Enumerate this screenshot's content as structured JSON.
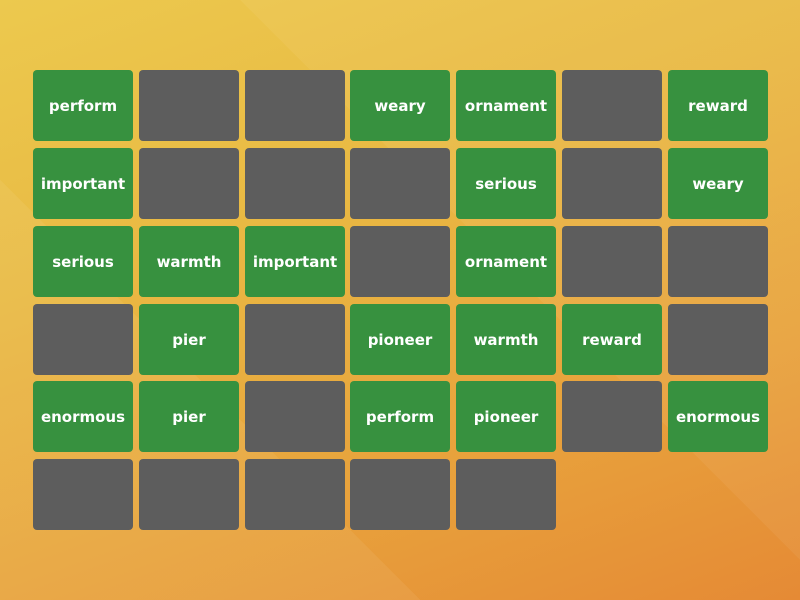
{
  "colors": {
    "face": "#37913f",
    "back": "#5d5d5d",
    "background_top": "#ecc94e",
    "background_bottom": "#e58a35"
  },
  "grid": {
    "columns": 7
  },
  "cards": [
    {
      "state": "face",
      "word": "perform"
    },
    {
      "state": "back"
    },
    {
      "state": "back"
    },
    {
      "state": "face",
      "word": "weary"
    },
    {
      "state": "face",
      "word": "ornament"
    },
    {
      "state": "back"
    },
    {
      "state": "face",
      "word": "reward"
    },
    {
      "state": "face",
      "word": "important"
    },
    {
      "state": "back"
    },
    {
      "state": "back"
    },
    {
      "state": "back"
    },
    {
      "state": "face",
      "word": "serious"
    },
    {
      "state": "back"
    },
    {
      "state": "face",
      "word": "weary"
    },
    {
      "state": "face",
      "word": "serious"
    },
    {
      "state": "face",
      "word": "warmth"
    },
    {
      "state": "face",
      "word": "important"
    },
    {
      "state": "back"
    },
    {
      "state": "face",
      "word": "ornament"
    },
    {
      "state": "back"
    },
    {
      "state": "back"
    },
    {
      "state": "back"
    },
    {
      "state": "face",
      "word": "pier"
    },
    {
      "state": "back"
    },
    {
      "state": "face",
      "word": "pioneer"
    },
    {
      "state": "face",
      "word": "warmth"
    },
    {
      "state": "face",
      "word": "reward"
    },
    {
      "state": "back"
    },
    {
      "state": "face",
      "word": "enormous"
    },
    {
      "state": "face",
      "word": "pier"
    },
    {
      "state": "back"
    },
    {
      "state": "face",
      "word": "perform"
    },
    {
      "state": "face",
      "word": "pioneer"
    },
    {
      "state": "back"
    },
    {
      "state": "face",
      "word": "enormous"
    },
    {
      "state": "back"
    },
    {
      "state": "back"
    },
    {
      "state": "back"
    },
    {
      "state": "back"
    },
    {
      "state": "back"
    }
  ]
}
